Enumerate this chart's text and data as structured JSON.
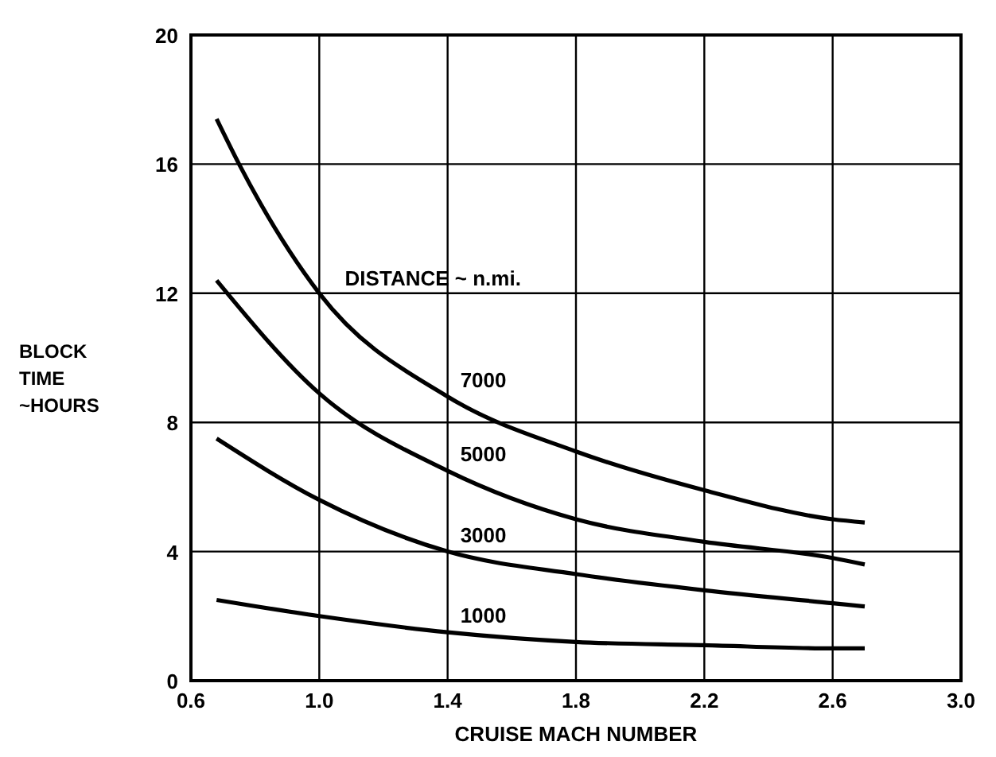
{
  "chart_data": {
    "type": "line",
    "xlabel": "CRUISE MACH NUMBER",
    "ylabel": "BLOCK TIME ~HOURS",
    "legend_title": "DISTANCE ~ n.mi.",
    "x": [
      0.68,
      1.0,
      1.4,
      1.8,
      2.2,
      2.6,
      2.7
    ],
    "series": [
      {
        "name": "7000",
        "color": "#000000",
        "x": [
          0.68,
          0.75,
          1.0,
          1.4,
          1.8,
          2.2,
          2.6,
          2.7
        ],
        "values": [
          17.4,
          16,
          12,
          8.8,
          7.1,
          5.9,
          5.0,
          4.9
        ]
      },
      {
        "name": "5000",
        "color": "#000000",
        "values": [
          12.4,
          8.9,
          6.5,
          5.0,
          4.3,
          3.8,
          3.6
        ]
      },
      {
        "name": "3000",
        "color": "#000000",
        "values": [
          7.5,
          5.6,
          4.0,
          3.3,
          2.8,
          2.4,
          2.3
        ]
      },
      {
        "name": "1000",
        "color": "#000000",
        "values": [
          2.5,
          2.0,
          1.5,
          1.2,
          1.1,
          1.0,
          1.0
        ]
      }
    ],
    "xlim": [
      0.6,
      3.0
    ],
    "ylim": [
      0,
      20
    ],
    "xticks": [
      0.6,
      {
        "value": 1,
        "label": "1.0"
      },
      1.4,
      1.8,
      2.2,
      2.6,
      {
        "value": 3,
        "label": "3.0"
      }
    ],
    "yticks": [
      0,
      4,
      8,
      12,
      16,
      20
    ],
    "grid": true,
    "marker": "none",
    "line_style": "solid"
  }
}
